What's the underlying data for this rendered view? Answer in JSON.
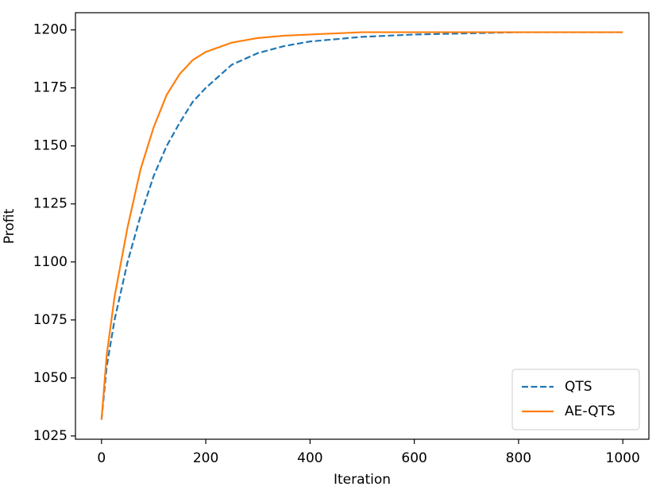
{
  "chart_data": {
    "type": "line",
    "x_label": "Iteration",
    "y_label": "Profit",
    "x": [
      0,
      10,
      25,
      50,
      75,
      100,
      125,
      150,
      175,
      200,
      250,
      300,
      350,
      400,
      500,
      600,
      700,
      800,
      1000
    ],
    "series": [
      {
        "name": "QTS",
        "color": "#1f77b4",
        "linestyle": "dashed",
        "values": [
          1032,
          1055,
          1075,
          1100,
          1120,
          1137,
          1150,
          1160,
          1169,
          1175,
          1185,
          1190,
          1193,
          1195,
          1197,
          1198,
          1198.5,
          1199,
          1199
        ]
      },
      {
        "name": "AE-QTS",
        "color": "#ff7f0e",
        "linestyle": "solid",
        "values": [
          1032,
          1060,
          1085,
          1115,
          1140,
          1158,
          1172,
          1181,
          1187,
          1190.5,
          1194.5,
          1196.5,
          1197.5,
          1198,
          1199,
          1199,
          1199,
          1199,
          1199
        ]
      }
    ],
    "xlim": [
      -50,
      1050
    ],
    "xticks": [
      0,
      200,
      400,
      600,
      800,
      1000
    ],
    "ylim": [
      1023.6,
      1207.4
    ],
    "yticks": [
      1025,
      1050,
      1075,
      1100,
      1125,
      1150,
      1175,
      1200
    ],
    "grid": false,
    "legend": "lower right"
  }
}
